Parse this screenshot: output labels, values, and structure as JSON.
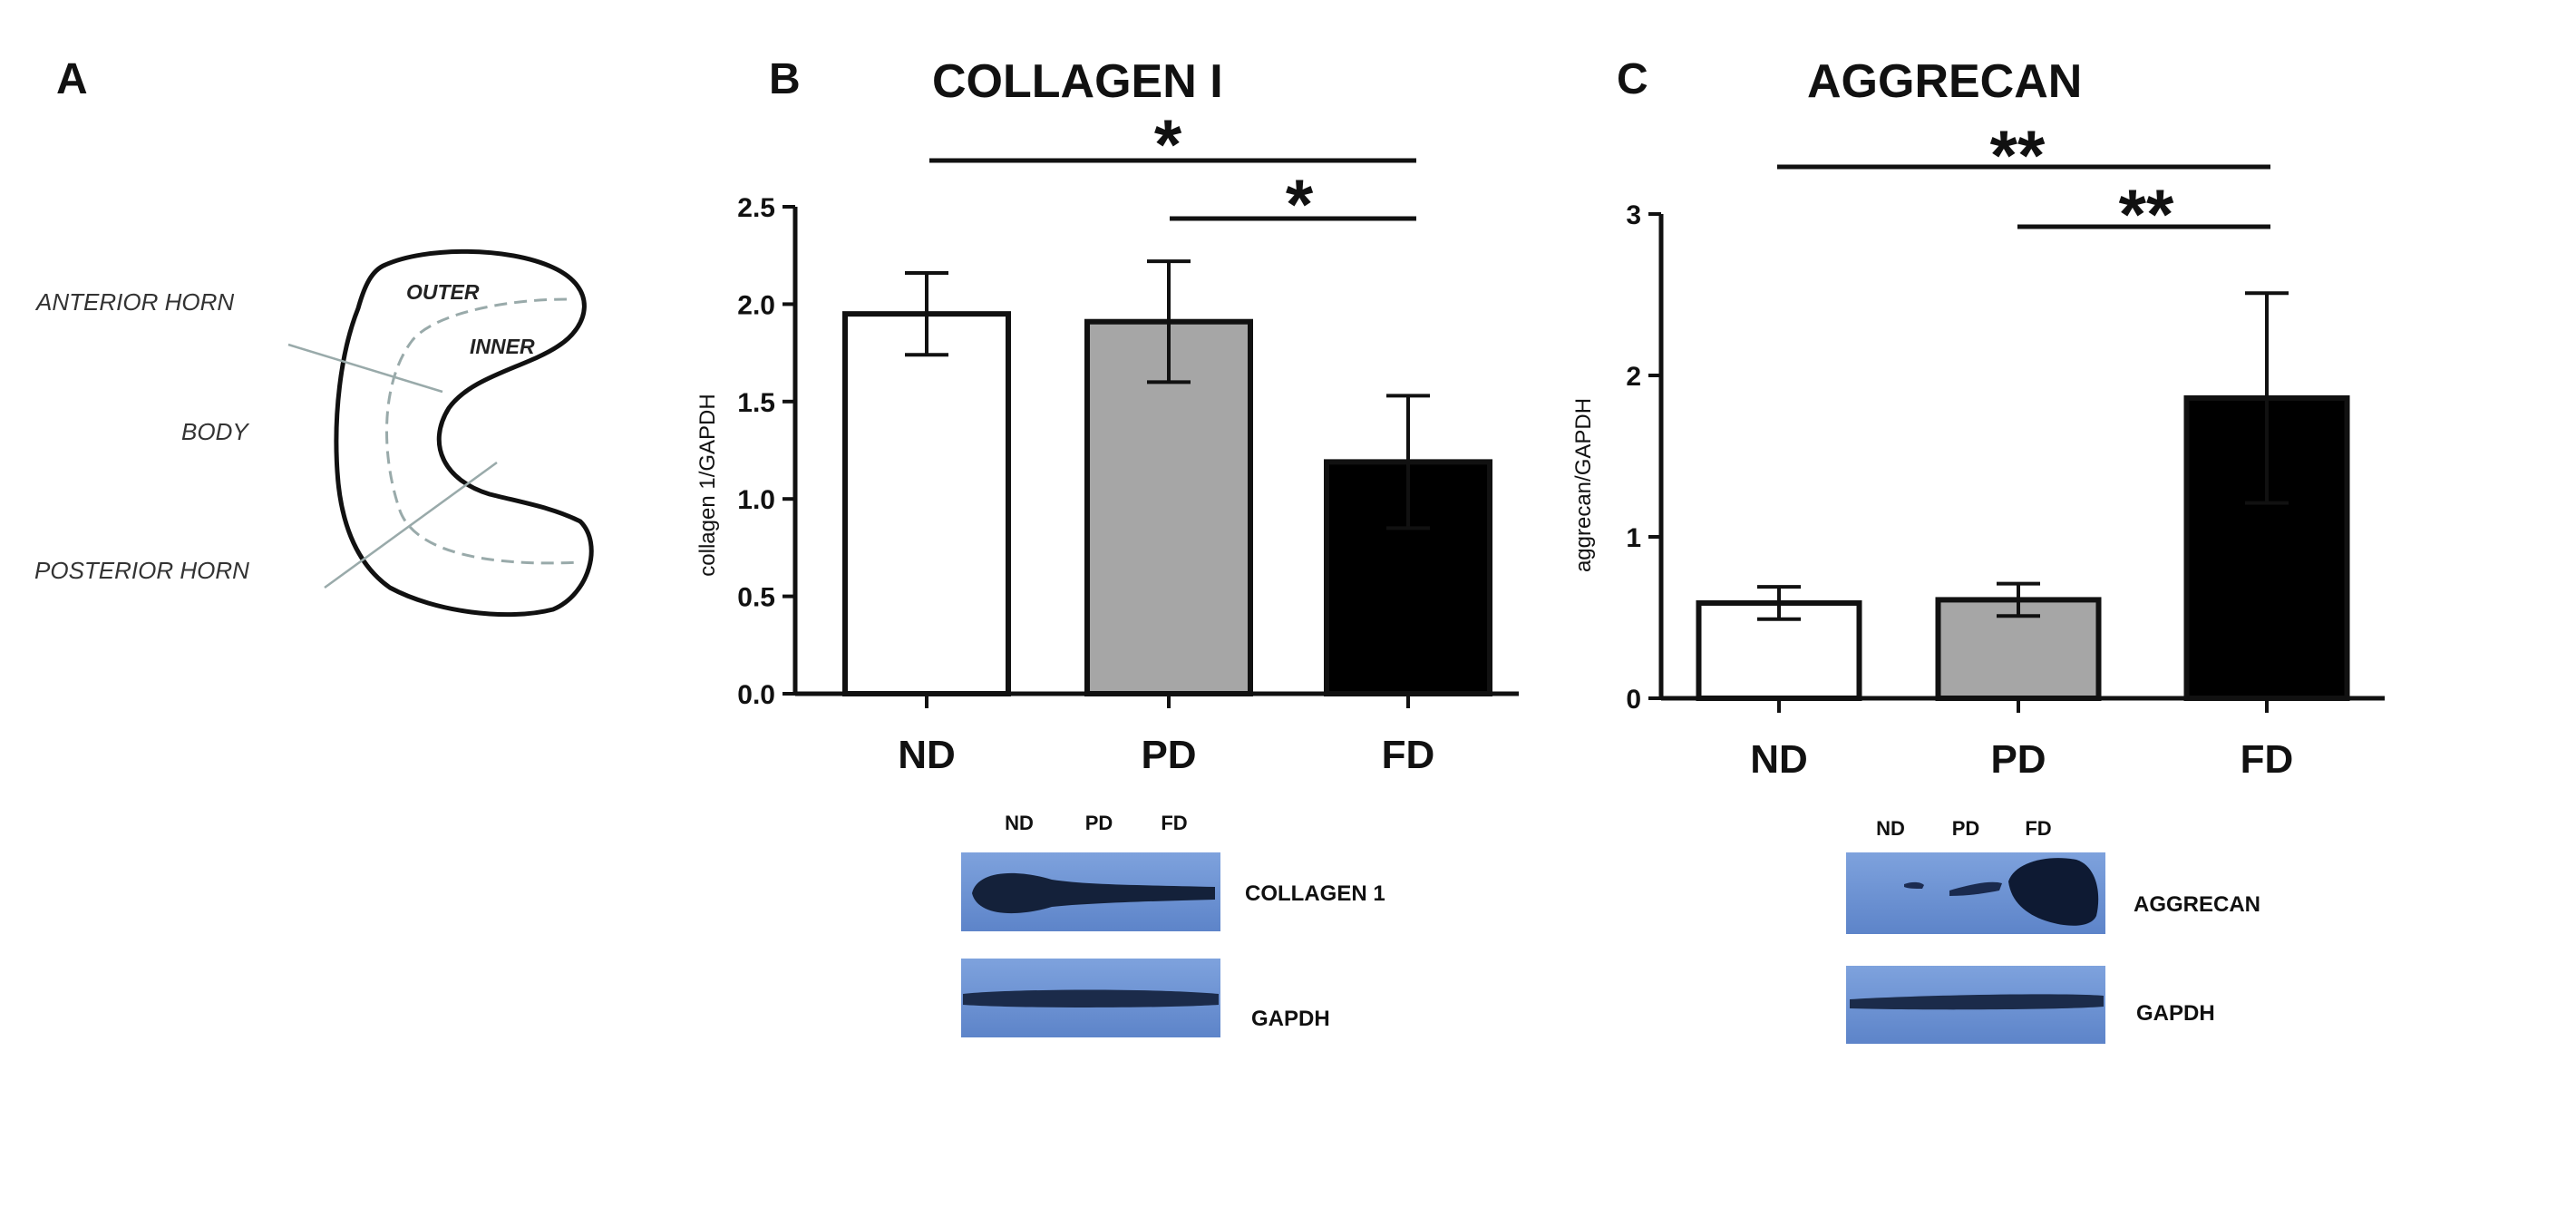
{
  "panels": {
    "a": "A",
    "b": "B",
    "c": "C"
  },
  "diagram": {
    "labels": {
      "anterior_horn": "ANTERIOR HORN",
      "body": "BODY",
      "posterior_horn": "POSTERIOR HORN",
      "outer": "OUTER",
      "inner": "INNER"
    }
  },
  "chart_data": [
    {
      "type": "bar",
      "title": "COLLAGEN I",
      "ylabel": "collagen 1/GAPDH",
      "xlabel": "",
      "categories": [
        "ND",
        "PD",
        "FD"
      ],
      "values": [
        1.95,
        1.91,
        1.19
      ],
      "errors": [
        0.21,
        0.31,
        0.34
      ],
      "colors": [
        "#ffffff",
        "#a6a6a6",
        "#000000"
      ],
      "ylim": [
        0,
        2.5
      ],
      "yticks": [
        "0.0",
        "0.5",
        "1.0",
        "1.5",
        "2.0",
        "2.5"
      ],
      "significance": [
        {
          "from": "ND",
          "to": "FD",
          "label": "*"
        },
        {
          "from": "PD",
          "to": "FD",
          "label": "*"
        }
      ],
      "blot": {
        "lanes": [
          "ND",
          "PD",
          "FD"
        ],
        "rows": [
          "COLLAGEN 1",
          "GAPDH"
        ]
      }
    },
    {
      "type": "bar",
      "title": "AGGRECAN",
      "ylabel": "aggrecan/GAPDH",
      "xlabel": "",
      "categories": [
        "ND",
        "PD",
        "FD"
      ],
      "values": [
        0.59,
        0.61,
        1.86
      ],
      "errors": [
        0.1,
        0.1,
        0.65
      ],
      "colors": [
        "#ffffff",
        "#a6a6a6",
        "#000000"
      ],
      "ylim": [
        0,
        3
      ],
      "yticks": [
        "0",
        "1",
        "2",
        "3"
      ],
      "significance": [
        {
          "from": "ND",
          "to": "FD",
          "label": "**"
        },
        {
          "from": "PD",
          "to": "FD",
          "label": "**"
        }
      ],
      "blot": {
        "lanes": [
          "ND",
          "PD",
          "FD"
        ],
        "rows": [
          "AGGRECAN",
          "GAPDH"
        ]
      }
    }
  ]
}
